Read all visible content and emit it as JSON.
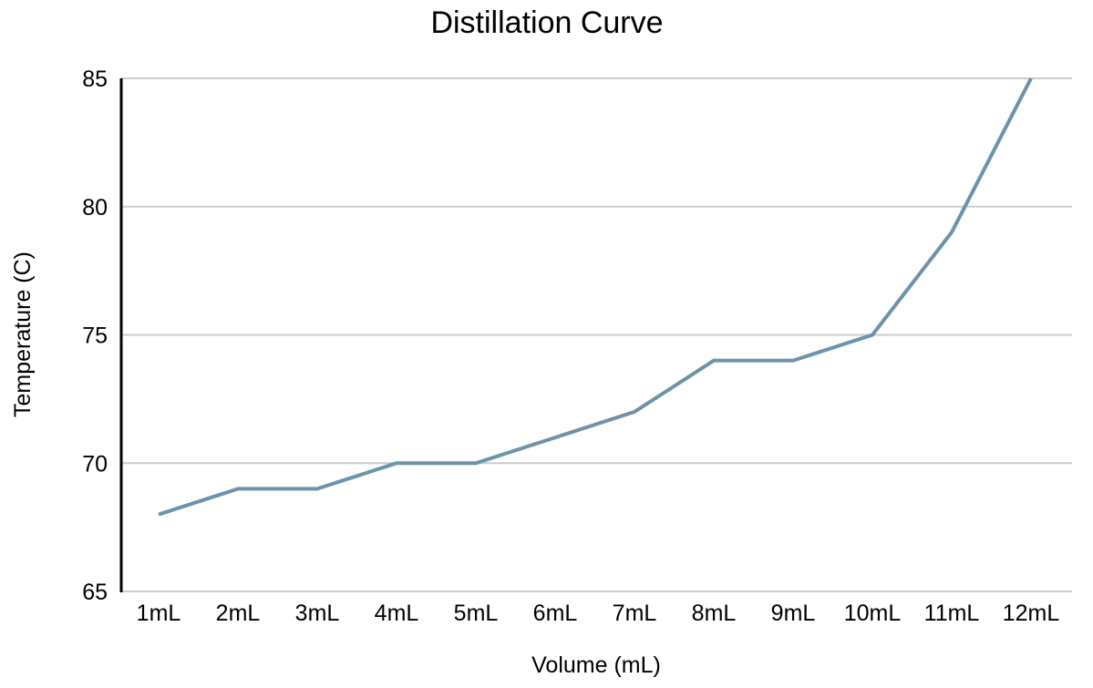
{
  "chart_data": {
    "type": "line",
    "title": "Distillation Curve",
    "xlabel": "Volume (mL)",
    "ylabel": "Temperature (C)",
    "categories": [
      "1mL",
      "2mL",
      "3mL",
      "4mL",
      "5mL",
      "6mL",
      "7mL",
      "8mL",
      "9mL",
      "10mL",
      "11mL",
      "12mL"
    ],
    "series": [
      {
        "name": "Temperature (C)",
        "values": [
          68,
          69,
          69,
          70,
          70,
          71,
          72,
          74,
          74,
          75,
          79,
          85
        ]
      }
    ],
    "ylim": [
      65,
      85
    ],
    "yticks": [
      65,
      70,
      75,
      80,
      85
    ],
    "grid": true,
    "legend": "none",
    "colors": {
      "line": "#6d93ab",
      "gridline": "#cccccc",
      "axis": "#000000",
      "title_text": "#757575",
      "tick_text": "#000000"
    }
  }
}
